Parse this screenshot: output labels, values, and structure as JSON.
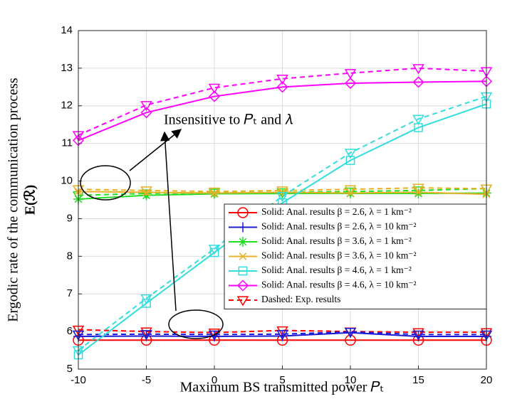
{
  "chart_data": {
    "type": "line",
    "xlabel": "Maximum BS transmitted power 𝑃ₜ",
    "ylabel": "Ergodic rate of the communication process",
    "ylabel2": "E(ℛ)",
    "annotation": "Insensitive to 𝑃ₜ and 𝜆",
    "x": [
      -10,
      -5,
      0,
      5,
      10,
      15,
      20
    ],
    "xlim": [
      -10,
      20
    ],
    "xticks": [
      -10,
      -5,
      0,
      5,
      10,
      15,
      20
    ],
    "ylim": [
      5,
      14
    ],
    "yticks": [
      5,
      6,
      7,
      8,
      9,
      10,
      11,
      12,
      13,
      14
    ],
    "grid": true,
    "legend": "lower right",
    "series": [
      {
        "name": "Solid: Anal. results β = 2.6, λ = 1 km⁻²",
        "color": "#ff0000",
        "marker": "circle",
        "values": [
          5.77,
          5.77,
          5.77,
          5.77,
          5.77,
          5.77,
          5.77
        ],
        "exp_values": [
          6.05,
          6.0,
          5.97,
          6.03,
          6.0,
          5.98,
          5.98
        ]
      },
      {
        "name": "Solid: Anal. results β = 2.6, λ = 10 km⁻²",
        "color": "#1a1ad6",
        "marker": "plus",
        "values": [
          5.87,
          5.88,
          5.87,
          5.88,
          5.97,
          5.87,
          5.87
        ],
        "exp_values": [
          5.92,
          5.93,
          5.92,
          5.93,
          5.99,
          5.92,
          5.92
        ]
      },
      {
        "name": "Solid: Anal. results β = 3.6, λ = 1 km⁻²",
        "color": "#22dd22",
        "marker": "asterisk",
        "values": [
          9.52,
          9.62,
          9.66,
          9.67,
          9.67,
          9.67,
          9.68
        ],
        "exp_values": [
          9.62,
          9.67,
          9.69,
          9.7,
          9.72,
          9.75,
          9.8
        ]
      },
      {
        "name": "Solid: Anal. results β = 3.6, λ = 10 km⁻²",
        "color": "#e8b028",
        "marker": "x",
        "values": [
          9.72,
          9.7,
          9.68,
          9.7,
          9.68,
          9.7,
          9.65
        ],
        "exp_values": [
          9.78,
          9.75,
          9.72,
          9.75,
          9.78,
          9.82,
          9.8
        ]
      },
      {
        "name": "Solid: Anal. results β = 4.6, λ = 1 km⁻²",
        "color": "#33dddd",
        "marker": "square",
        "values": [
          5.38,
          6.75,
          8.1,
          9.42,
          10.55,
          11.42,
          12.05
        ],
        "exp_values": [
          5.5,
          6.88,
          8.2,
          9.6,
          10.75,
          11.65,
          12.25
        ]
      },
      {
        "name": "Solid: Anal. results β = 4.6, λ = 10 km⁻²",
        "color": "#ff00ff",
        "marker": "diamond",
        "values": [
          11.08,
          11.82,
          12.25,
          12.5,
          12.6,
          12.63,
          12.65
        ],
        "exp_values": [
          11.22,
          12.02,
          12.48,
          12.72,
          12.87,
          13.0,
          12.92
        ]
      }
    ],
    "exp_legend": {
      "name": "Dashed: Exp. results",
      "color": "#ff0000",
      "marker": "triangle-down"
    }
  }
}
